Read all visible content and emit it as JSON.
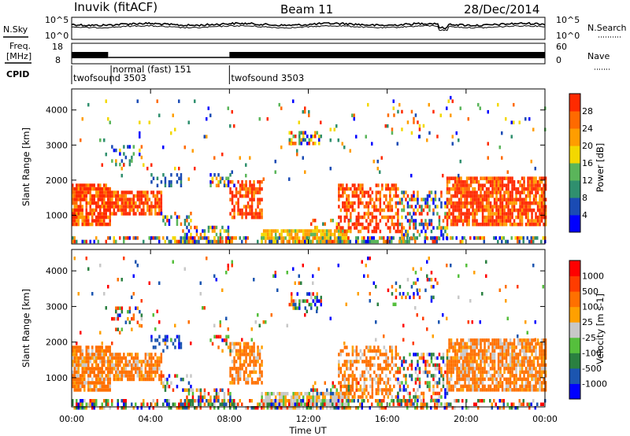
{
  "header": {
    "station": "Inuvik (fitACF)",
    "beam": "Beam 11",
    "date": "28/Dec/2014"
  },
  "side_labels": {
    "nsky": "N.Sky",
    "freq_line1": "Freq.",
    "freq_line2": "[MHz]",
    "cpid": "CPID",
    "nsearch": "N.Search",
    "nave": "Nave"
  },
  "colors": {
    "power_scale": [
      "#0000ff",
      "#1a4bb4",
      "#2f8f6e",
      "#5ab55a",
      "#f3d800",
      "#ff9d00",
      "#ff6a00",
      "#ff2a00"
    ],
    "velocity_scale": [
      "#0000ff",
      "#1b55b0",
      "#2a8040",
      "#55bf3c",
      "#c8c8c8",
      "#ffa000",
      "#ff7000",
      "#ff3c00",
      "#ff0000"
    ]
  },
  "chart_data": [
    {
      "type": "line",
      "name": "noise",
      "left_ticks": [
        "10^5",
        "10^0"
      ],
      "right_ticks": [
        "10^5",
        "10^0"
      ],
      "legend_left": "N.Sky",
      "legend_right": "N.Search"
    },
    {
      "type": "line",
      "name": "frequency_nave",
      "left_ticks": [
        "18",
        "8"
      ],
      "right_ticks": [
        "60",
        "0"
      ],
      "cpid_segments": [
        {
          "label": "twofsound 3503",
          "start": "00:00"
        },
        {
          "label": "normal (fast) 151",
          "start": "02:00"
        },
        {
          "label": "twofsound 3503",
          "start": "08:00"
        }
      ]
    },
    {
      "type": "heatmap",
      "name": "power",
      "ylabel": "Slant Range [km]",
      "y_ticks": [
        1000,
        2000,
        3000,
        4000
      ],
      "ylim": [
        180,
        4600
      ],
      "colorbar_label": "Power [dB]",
      "colorbar_ticks": [
        "28",
        "24",
        "20",
        "16",
        "12",
        "8",
        "4"
      ],
      "colorbar_range": [
        0,
        30
      ]
    },
    {
      "type": "heatmap",
      "name": "velocity",
      "ylabel": "Slant Range [km]",
      "y_ticks": [
        1000,
        2000,
        3000,
        4000
      ],
      "ylim": [
        180,
        4600
      ],
      "colorbar_label": "Velocity [m s-1]",
      "colorbar_ticks": [
        "1000",
        "500",
        "100",
        "25",
        "-25",
        "-100",
        "-500",
        "-1000"
      ]
    }
  ],
  "x_axis": {
    "ticks": [
      "00:00",
      "04:00",
      "08:00",
      "12:00",
      "16:00",
      "20:00",
      "00:00"
    ],
    "label": "Time UT",
    "range_hours": [
      0,
      24
    ]
  }
}
